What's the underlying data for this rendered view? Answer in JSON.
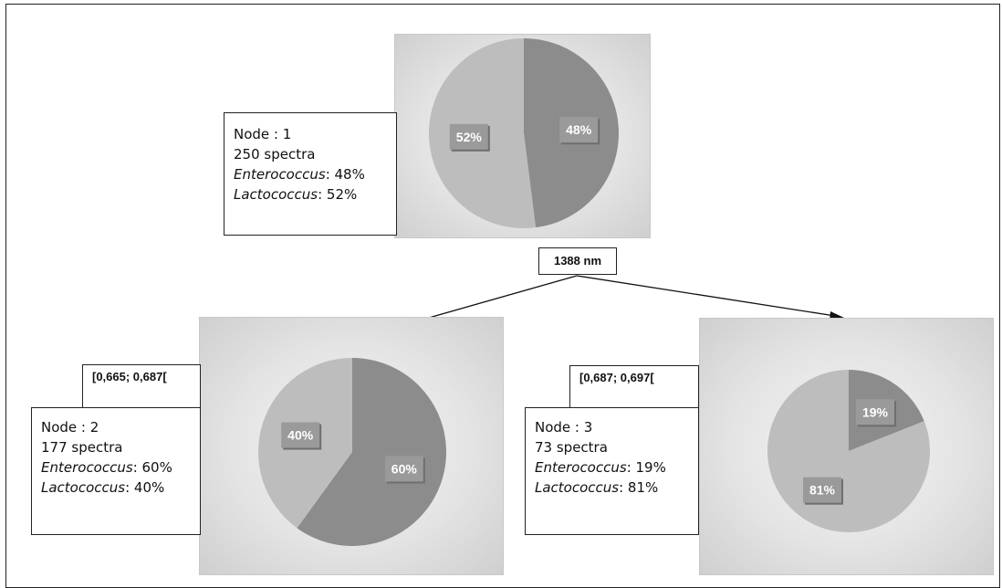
{
  "split_label": "1388 nm",
  "nodes": [
    {
      "node_label": "Node : 1",
      "spectra": "250 spectra",
      "enterococcus_name": "Enterococcus",
      "enterococcus_value": ": 48%",
      "lactococcus_name": "Lactococcus",
      "lactococcus_value": ": 52%",
      "pie": {
        "enterococcus": 48,
        "lactococcus": 52,
        "enterococcus_label": "48%",
        "lactococcus_label": "52%"
      }
    },
    {
      "interval": "[0,665; 0,687[",
      "node_label": "Node : 2",
      "spectra": "177 spectra",
      "enterococcus_name": "Enterococcus",
      "enterococcus_value": ": 60%",
      "lactococcus_name": "Lactococcus",
      "lactococcus_value": ": 40%",
      "pie": {
        "enterococcus": 60,
        "lactococcus": 40,
        "enterococcus_label": "60%",
        "lactococcus_label": "40%"
      }
    },
    {
      "interval": "[0,687; 0,697[",
      "node_label": "Node : 3",
      "spectra": "73 spectra",
      "enterococcus_name": "Enterococcus",
      "enterococcus_value": ": 19%",
      "lactococcus_name": "Lactococcus",
      "lactococcus_value": ": 81%",
      "pie": {
        "enterococcus": 19,
        "lactococcus": 81,
        "enterococcus_label": "19%",
        "lactococcus_label": "81%"
      }
    }
  ],
  "colors": {
    "enterococcus": "#8c8c8c",
    "lactococcus": "#bdbdbd",
    "label_box": "#9a9a9a"
  }
}
